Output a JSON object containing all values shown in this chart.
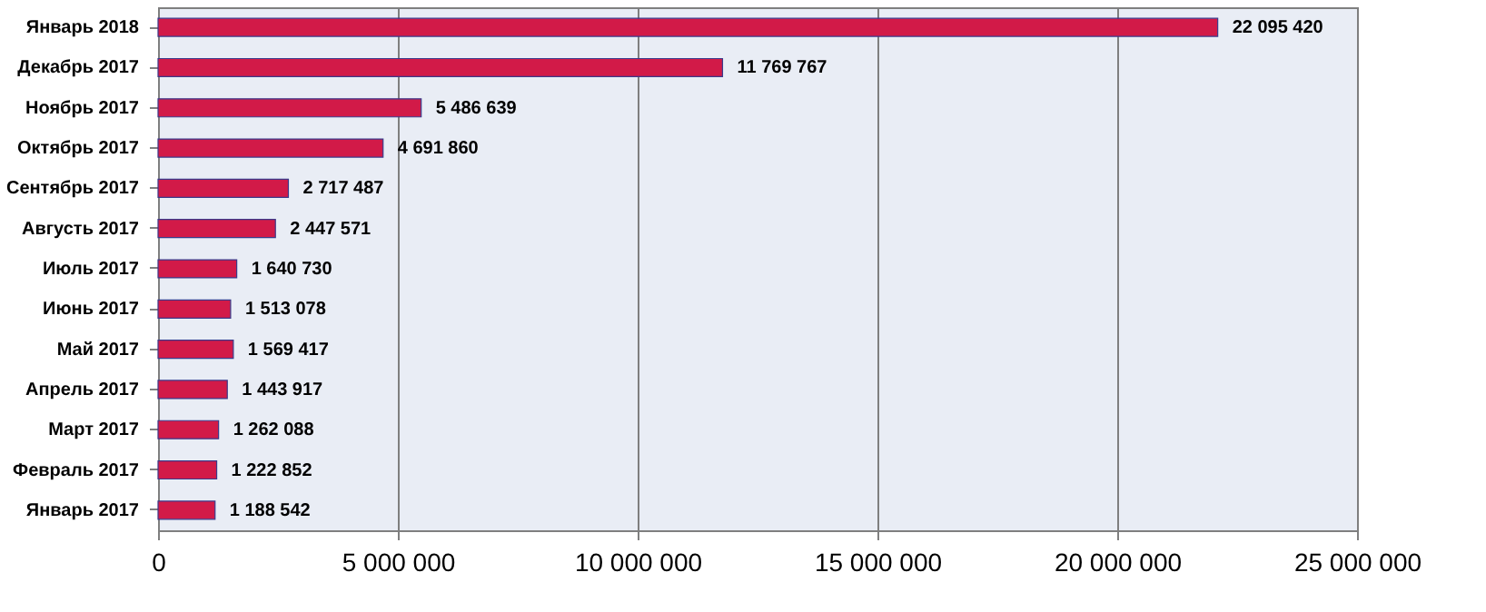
{
  "chart_data": {
    "type": "bar",
    "orientation": "horizontal",
    "categories": [
      "Январь 2018",
      "Декабрь 2017",
      "Ноябрь 2017",
      "Октябрь 2017",
      "Сентябрь 2017",
      "Августь 2017",
      "Июль 2017",
      "Июнь 2017",
      "Май 2017",
      "Апрель 2017",
      "Март 2017",
      "Февраль 2017",
      "Январь 2017"
    ],
    "values": [
      22095420,
      11769767,
      5486639,
      4691860,
      2717487,
      2447571,
      1640730,
      1513078,
      1569417,
      1443917,
      1262088,
      1222852,
      1188542
    ],
    "value_labels": [
      "22 095 420",
      "11 769 767",
      "5 486 639",
      "4 691 860",
      "2 717 487",
      "2 447 571",
      "1 640 730",
      "1 513 078",
      "1 569 417",
      "1 443 917",
      "1 262 088",
      "1 222 852",
      "1 188 542"
    ],
    "color": "#d21a48",
    "xlim": [
      0,
      25000000
    ],
    "xticks": [
      0,
      {
        "value": 5000000,
        "label": "5 000 000"
      },
      {
        "value": 10000000,
        "label": "10 000 000"
      },
      {
        "value": 15000000,
        "label": "15 000 000"
      },
      {
        "value": 20000000,
        "label": "20 000 000"
      },
      {
        "value": 25000000,
        "label": "25 000 000"
      }
    ],
    "grid": "x"
  }
}
